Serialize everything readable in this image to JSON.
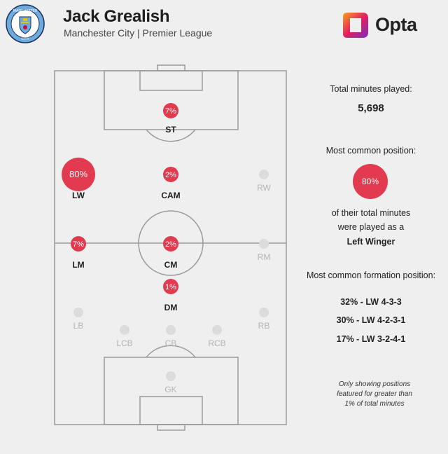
{
  "header": {
    "player_name": "Jack Grealish",
    "subtitle": "Manchester City | Premier League",
    "crest_text": "MANCHESTER CITY",
    "brand": "Opta"
  },
  "colors": {
    "accent": "#e23a4e",
    "inactive_dot": "#dcdcdc",
    "pitch_line": "#9a9a9a",
    "crest_blue": "#6cabdd"
  },
  "chart_data": {
    "type": "scatter",
    "title": "",
    "positions": [
      {
        "code": "ST",
        "pct": 7,
        "label": "7%",
        "active": true
      },
      {
        "code": "LW",
        "pct": 80,
        "label": "80%",
        "active": true
      },
      {
        "code": "CAM",
        "pct": 2,
        "label": "2%",
        "active": true
      },
      {
        "code": "RW",
        "pct": 0,
        "label": "",
        "active": false
      },
      {
        "code": "LM",
        "pct": 7,
        "label": "7%",
        "active": true
      },
      {
        "code": "CM",
        "pct": 2,
        "label": "2%",
        "active": true
      },
      {
        "code": "RM",
        "pct": 0,
        "label": "",
        "active": false
      },
      {
        "code": "DM",
        "pct": 1,
        "label": "1%",
        "active": true
      },
      {
        "code": "LB",
        "pct": 0,
        "label": "",
        "active": false
      },
      {
        "code": "RB",
        "pct": 0,
        "label": "",
        "active": false
      },
      {
        "code": "LCB",
        "pct": 0,
        "label": "",
        "active": false
      },
      {
        "code": "CB",
        "pct": 0,
        "label": "",
        "active": false
      },
      {
        "code": "RCB",
        "pct": 0,
        "label": "",
        "active": false
      },
      {
        "code": "GK",
        "pct": 0,
        "label": "",
        "active": false
      }
    ]
  },
  "panel": {
    "total_minutes_label": "Total minutes played:",
    "total_minutes_value": "5,698",
    "common_position_label": "Most common position:",
    "common_position_pct": "80%",
    "common_position_line1": "of their total minutes",
    "common_position_line2": "were played as a",
    "common_position_name": "Left Winger",
    "formation_label": "Most common formation position:",
    "formations": [
      "32% - LW 4-3-3",
      "30% - LW 4-2-3-1",
      "17% - LW 3-2-4-1"
    ],
    "note_line1": "Only showing positions",
    "note_line2": "featured for greater than",
    "note_line3": "1% of total minutes"
  }
}
